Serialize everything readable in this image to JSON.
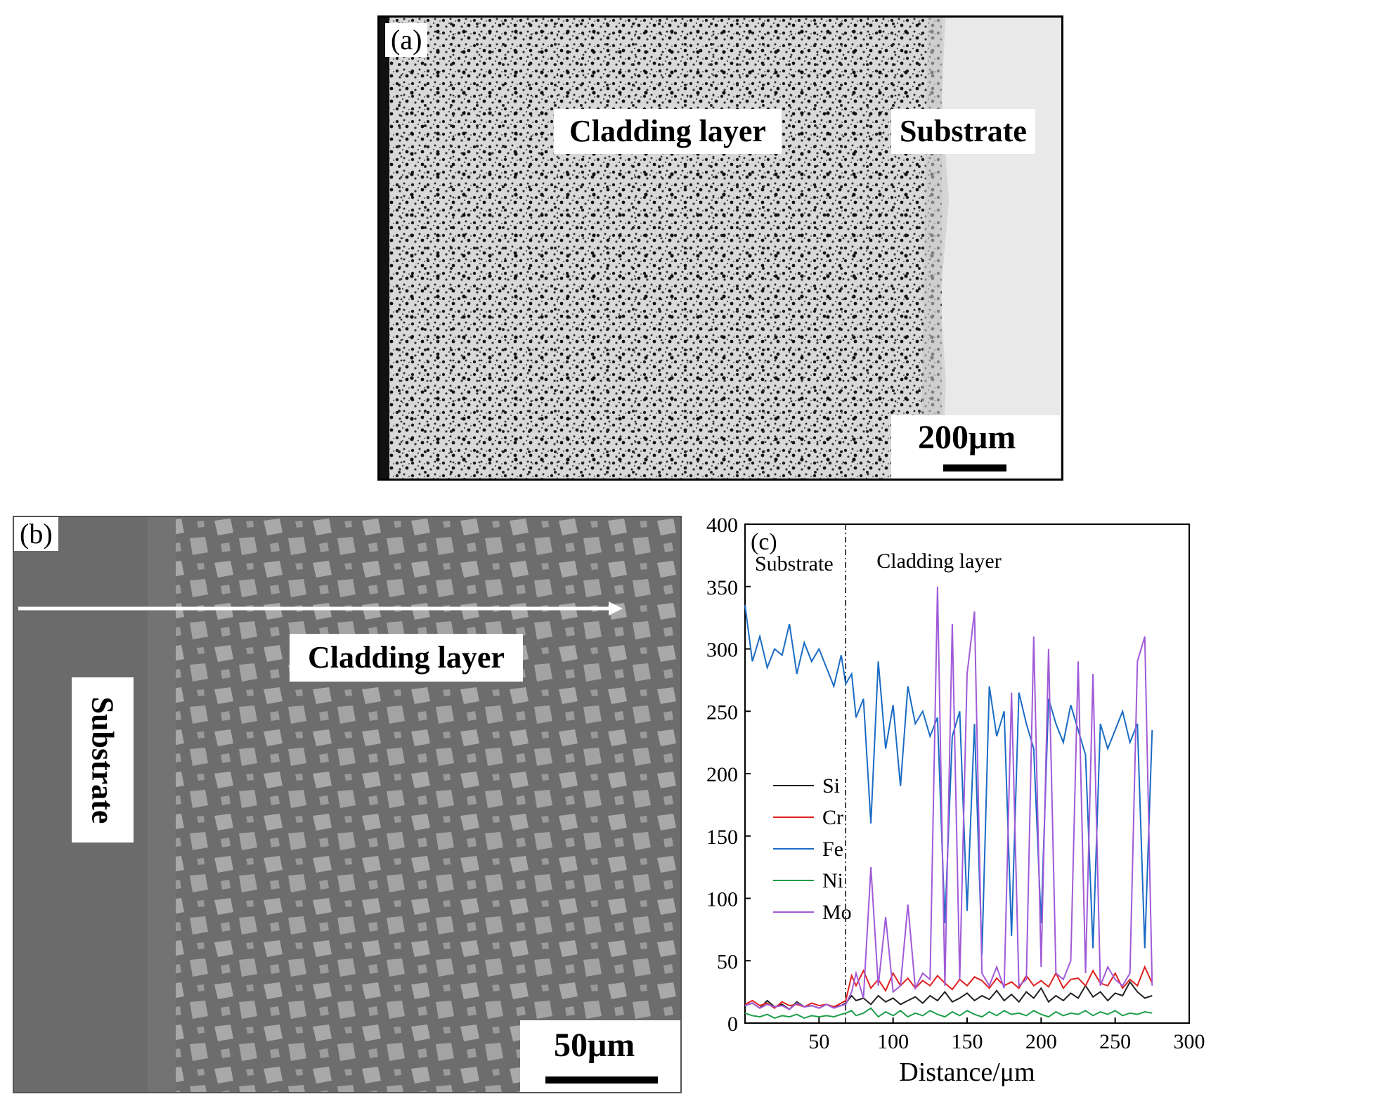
{
  "panel_a": {
    "label": "(a)",
    "cladding_label": "Cladding layer",
    "substrate_label": "Substrate",
    "scale_text": "200μm"
  },
  "panel_b": {
    "label": "(b)",
    "cladding_label": "Cladding layer",
    "substrate_label": "Substrate",
    "scale_text": "50μm"
  },
  "chart_data": {
    "type": "line",
    "panel_label": "(c)",
    "xlabel": "Distance/μm",
    "ylabel": "",
    "xlim": [
      0,
      300
    ],
    "ylim": [
      0,
      400
    ],
    "xticks": [
      50,
      100,
      150,
      200,
      250,
      300
    ],
    "yticks": [
      0,
      50,
      100,
      150,
      200,
      250,
      300,
      350,
      400
    ],
    "grid": false,
    "legend_position": "middle-left",
    "boundary_x": 68,
    "region_labels": [
      "Substrate",
      "Cladding layer"
    ],
    "x": [
      0,
      5,
      10,
      15,
      20,
      25,
      30,
      35,
      40,
      45,
      50,
      55,
      60,
      65,
      68,
      72,
      75,
      80,
      85,
      90,
      95,
      100,
      105,
      110,
      115,
      120,
      125,
      130,
      135,
      140,
      145,
      150,
      155,
      160,
      165,
      170,
      175,
      180,
      185,
      190,
      195,
      200,
      205,
      210,
      215,
      220,
      225,
      230,
      235,
      240,
      245,
      250,
      255,
      260,
      265,
      270,
      275
    ],
    "series": [
      {
        "name": "Si",
        "color": "#222222",
        "values": [
          14,
          16,
          12,
          18,
          13,
          15,
          11,
          17,
          13,
          14,
          12,
          15,
          13,
          14,
          16,
          22,
          18,
          20,
          15,
          22,
          17,
          20,
          15,
          18,
          21,
          16,
          22,
          18,
          25,
          17,
          20,
          24,
          18,
          22,
          19,
          26,
          18,
          23,
          17,
          25,
          20,
          28,
          17,
          22,
          18,
          24,
          20,
          30,
          21,
          25,
          18,
          24,
          22,
          33,
          25,
          20,
          22
        ]
      },
      {
        "name": "Cr",
        "color": "#e02020",
        "values": [
          15,
          18,
          14,
          16,
          12,
          17,
          14,
          15,
          13,
          16,
          14,
          15,
          13,
          16,
          18,
          38,
          30,
          42,
          28,
          35,
          26,
          40,
          30,
          36,
          28,
          34,
          30,
          38,
          32,
          27,
          35,
          30,
          37,
          34,
          28,
          36,
          30,
          33,
          28,
          38,
          30,
          34,
          29,
          40,
          28,
          35,
          36,
          30,
          42,
          32,
          30,
          40,
          28,
          35,
          30,
          45,
          32
        ]
      },
      {
        "name": "Fe",
        "color": "#1a6bc4",
        "values": [
          335,
          290,
          310,
          285,
          300,
          295,
          320,
          280,
          305,
          290,
          300,
          285,
          270,
          295,
          272,
          280,
          245,
          260,
          160,
          290,
          220,
          255,
          190,
          270,
          240,
          250,
          230,
          245,
          80,
          230,
          250,
          90,
          240,
          55,
          270,
          230,
          250,
          70,
          265,
          240,
          220,
          80,
          260,
          240,
          225,
          255,
          235,
          215,
          60,
          240,
          220,
          235,
          250,
          225,
          240,
          60,
          235
        ]
      },
      {
        "name": "Ni",
        "color": "#1e9e4a",
        "values": [
          8,
          6,
          5,
          7,
          4,
          6,
          5,
          7,
          4,
          6,
          5,
          6,
          5,
          7,
          8,
          10,
          6,
          8,
          12,
          5,
          9,
          6,
          10,
          5,
          8,
          6,
          10,
          7,
          5,
          9,
          6,
          10,
          7,
          5,
          9,
          6,
          10,
          7,
          8,
          6,
          10,
          7,
          5,
          9,
          6,
          8,
          7,
          10,
          6,
          9,
          7,
          10,
          6,
          8,
          7,
          9,
          8
        ]
      },
      {
        "name": "Mo",
        "color": "#a05ad8",
        "values": [
          14,
          16,
          12,
          15,
          13,
          14,
          11,
          16,
          13,
          14,
          12,
          15,
          12,
          14,
          15,
          25,
          40,
          20,
          125,
          30,
          85,
          25,
          30,
          95,
          28,
          40,
          35,
          350,
          30,
          320,
          35,
          280,
          330,
          40,
          30,
          45,
          28,
          265,
          30,
          35,
          310,
          45,
          300,
          40,
          35,
          50,
          290,
          40,
          280,
          30,
          45,
          35,
          30,
          40,
          290,
          310,
          30
        ]
      }
    ]
  }
}
